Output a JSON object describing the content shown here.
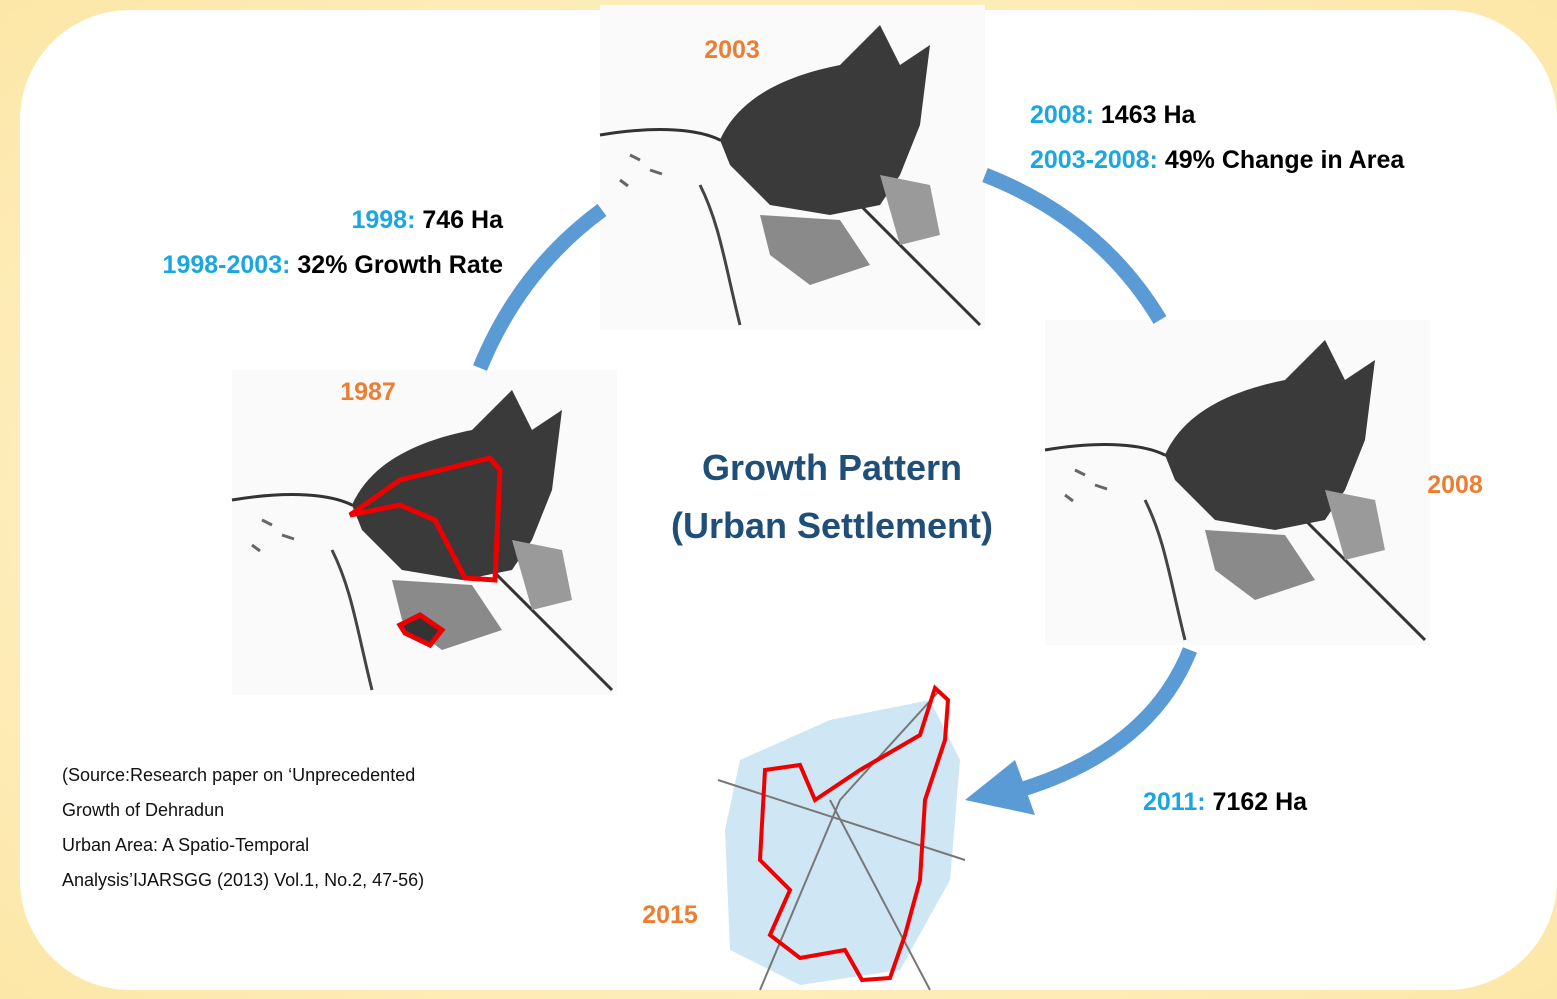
{
  "title": {
    "lines": [
      "Growth Pattern",
      "(Urban Settlement)"
    ]
  },
  "nodes": [
    {
      "label": "2003"
    },
    {
      "label": "1987"
    },
    {
      "label": "2008"
    },
    {
      "label": "2015"
    }
  ],
  "annotations": [
    {
      "key": "1998:",
      "text": "746 Ha"
    },
    {
      "key": "1998-2003:",
      "text": "32% Growth Rate"
    },
    {
      "key": "2008:",
      "text": "1463 Ha"
    },
    {
      "key": "2003-2008:",
      "text": "49% Change in Area"
    },
    {
      "key": "2011:",
      "text": "7162 Ha"
    }
  ],
  "source": {
    "lines": [
      "(Source:Research paper on ‘Unprecedented",
      "Growth of Dehradun",
      "Urban Area: A Spatio-Temporal",
      "Analysis’IJARSGG (2013) Vol.1, No.2, 47-56)"
    ]
  }
}
